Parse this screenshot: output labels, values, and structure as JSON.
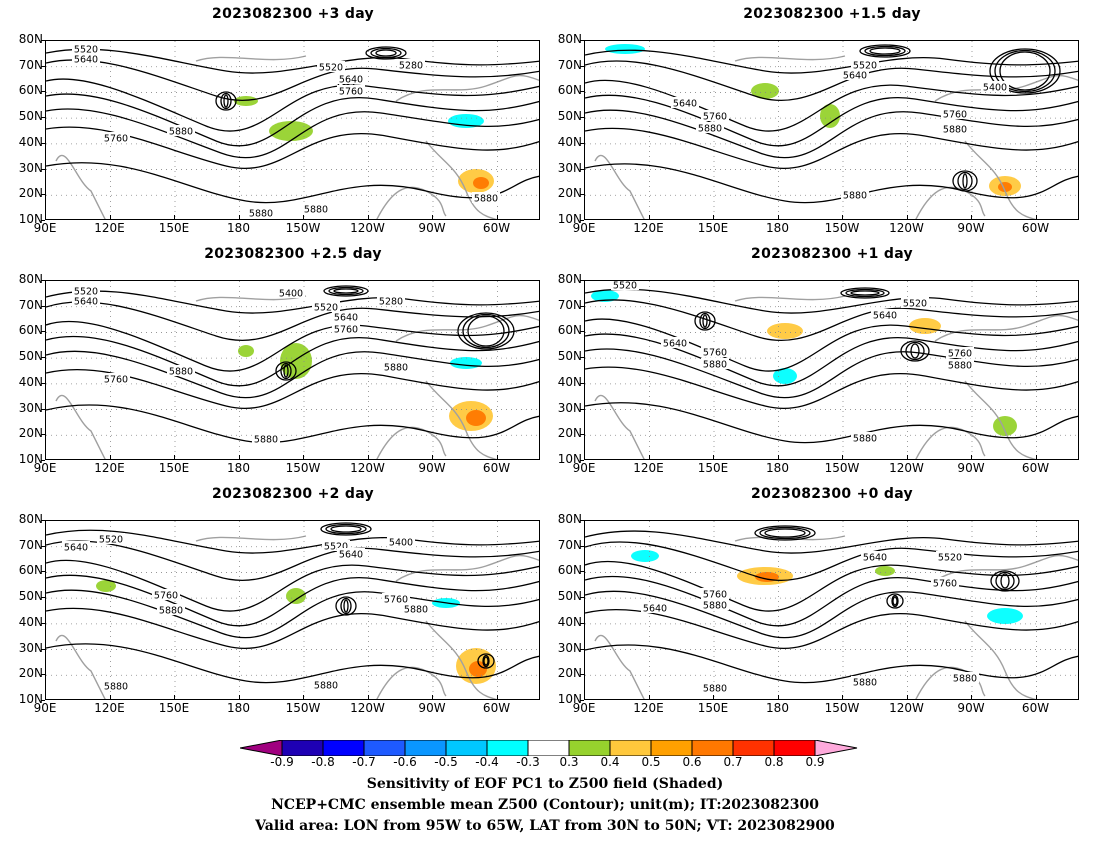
{
  "panels": [
    {
      "title": "2023082300 +3 day",
      "contour_labels": [
        "5520",
        "5640",
        "5520",
        "5280",
        "5640",
        "5760",
        "5760",
        "5880",
        "5880",
        "5880",
        "5880"
      ]
    },
    {
      "title": "2023082300 +1.5 day",
      "contour_labels": [
        "5520",
        "5640",
        "5400",
        "5640",
        "5760",
        "5880",
        "5760",
        "5880",
        "5880"
      ]
    },
    {
      "title": "2023082300 +2.5 day",
      "contour_labels": [
        "5520",
        "5640",
        "5400",
        "5520",
        "5280",
        "5640",
        "5760",
        "5760",
        "5880",
        "5880",
        "5880"
      ]
    },
    {
      "title": "2023082300 +1 day",
      "contour_labels": [
        "5520",
        "5520",
        "5640",
        "5640",
        "5760",
        "5880",
        "5760",
        "5880",
        "5880"
      ]
    },
    {
      "title": "2023082300 +2 day",
      "contour_labels": [
        "5640",
        "5520",
        "5520",
        "5640",
        "5400",
        "5760",
        "5880",
        "5760",
        "5880",
        "5880",
        "5880"
      ]
    },
    {
      "title": "2023082300 +0 day",
      "contour_labels": [
        "5640",
        "5520",
        "5760",
        "5760",
        "5880",
        "5640",
        "5880",
        "5880",
        "5880"
      ]
    }
  ],
  "axes": {
    "lat_labels": [
      "80N",
      "70N",
      "60N",
      "50N",
      "40N",
      "30N",
      "20N",
      "10N"
    ],
    "lon_labels": [
      "90E",
      "120E",
      "150E",
      "180",
      "150W",
      "120W",
      "90W",
      "60W"
    ]
  },
  "colorbar": {
    "ticks": [
      "-0.9",
      "-0.8",
      "-0.7",
      "-0.6",
      "-0.5",
      "-0.4",
      "-0.3",
      "0.3",
      "0.4",
      "0.5",
      "0.6",
      "0.7",
      "0.8",
      "0.9"
    ],
    "colors": [
      "#a0007f",
      "#1e00b4",
      "#0000ff",
      "#1e5aff",
      "#0a96ff",
      "#00c8ff",
      "#00ffff",
      "#ffffff",
      "#96d22d",
      "#ffc83c",
      "#ffa000",
      "#ff7800",
      "#ff3200",
      "#ff0000",
      "#ffaadc"
    ]
  },
  "footer": {
    "line1": "Sensitivity of EOF PC1 to Z500 field (Shaded)",
    "line2": "NCEP+CMC ensemble mean Z500 (Contour); unit(m); IT:2023082300",
    "line3": "Valid area: LON from 95W to 65W, LAT from 30N to 50N; VT: 2023082900"
  }
}
